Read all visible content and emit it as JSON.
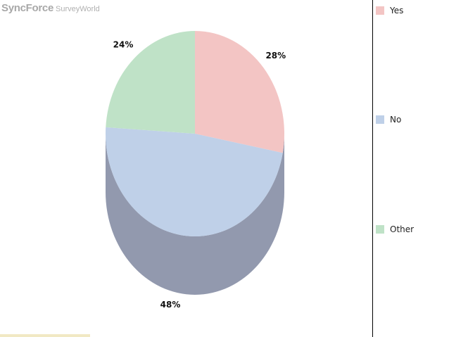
{
  "logo": {
    "brand": "SyncForce",
    "suffix": "SurveyWorld"
  },
  "chart_data": {
    "type": "pie",
    "title": "",
    "slices": [
      {
        "label": "Yes",
        "value": 28,
        "display": "28%",
        "color": "#f3c5c4"
      },
      {
        "label": "No",
        "value": 48,
        "display": "48%",
        "color": "#bfd0e8"
      },
      {
        "label": "Other",
        "value": 24,
        "display": "24%",
        "color": "#bfe2c7"
      }
    ],
    "side_color": "#9299ae",
    "start_angle_deg": 0,
    "legend_position": "right"
  }
}
